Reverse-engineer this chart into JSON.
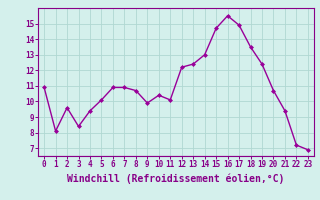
{
  "x": [
    0,
    1,
    2,
    3,
    4,
    5,
    6,
    7,
    8,
    9,
    10,
    11,
    12,
    13,
    14,
    15,
    16,
    17,
    18,
    19,
    20,
    21,
    22,
    23
  ],
  "y": [
    10.9,
    8.1,
    9.6,
    8.4,
    9.4,
    10.1,
    10.9,
    10.9,
    10.7,
    9.9,
    10.4,
    10.1,
    12.2,
    12.4,
    13.0,
    14.7,
    15.5,
    14.9,
    13.5,
    12.4,
    10.7,
    9.4,
    7.2,
    6.9
  ],
  "line_color": "#990099",
  "marker": "D",
  "marker_size": 2,
  "bg_color": "#d4f0ec",
  "grid_color": "#b0d8d2",
  "xlabel": "Windchill (Refroidissement éolien,°C)",
  "ylim": [
    6.5,
    16.0
  ],
  "xlim": [
    -0.5,
    23.5
  ],
  "yticks": [
    7,
    8,
    9,
    10,
    11,
    12,
    13,
    14,
    15
  ],
  "xticks": [
    0,
    1,
    2,
    3,
    4,
    5,
    6,
    7,
    8,
    9,
    10,
    11,
    12,
    13,
    14,
    15,
    16,
    17,
    18,
    19,
    20,
    21,
    22,
    23
  ],
  "tick_label_color": "#880088",
  "tick_label_size": 5.5,
  "xlabel_size": 7.0,
  "xlabel_color": "#880088",
  "spine_color": "#880088",
  "line_width": 1.0
}
